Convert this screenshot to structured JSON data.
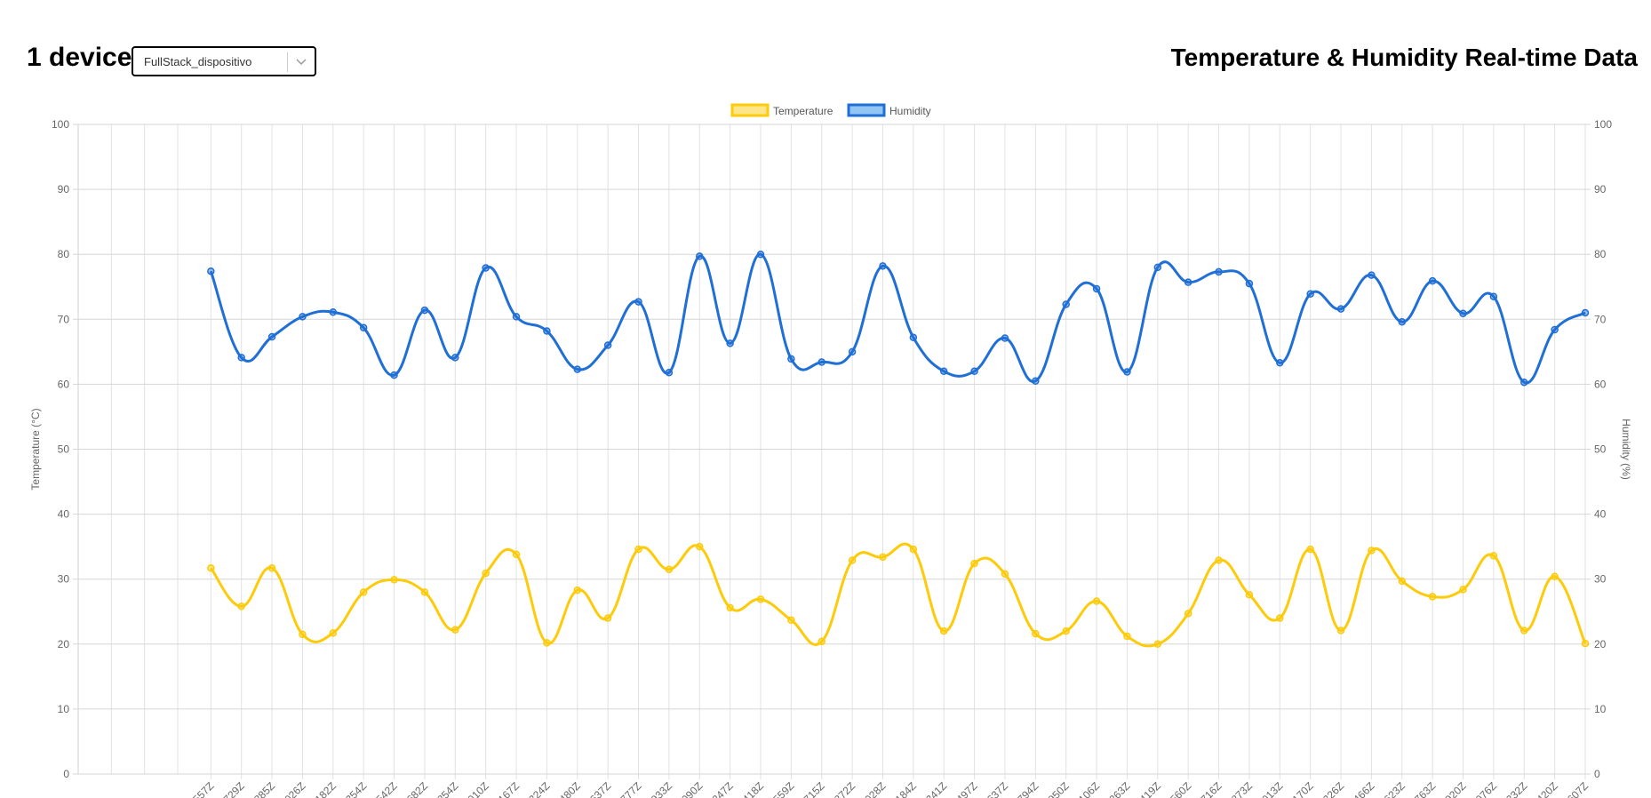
{
  "header": {
    "device_count_label": "1 device",
    "device_select_value": "FullStack_dispositivo",
    "title": "Temperature & Humidity Real-time Data"
  },
  "chart_data": {
    "type": "line",
    "title": "",
    "categories": [
      "557Z",
      "729Z",
      "885Z",
      "026Z",
      "182Z",
      "354Z",
      "542Z",
      "682Z",
      "854Z",
      "010Z",
      "167Z",
      "324Z",
      "480Z",
      "637Z",
      "777Z",
      "933Z",
      "090Z",
      "247Z",
      "418Z",
      "559Z",
      "715Z",
      "872Z",
      "028Z",
      "184Z",
      "341Z",
      "497Z",
      "637Z",
      "794Z",
      "950Z",
      "106Z",
      "263Z",
      "419Z",
      "560Z",
      "716Z",
      "873Z",
      "013Z",
      "170Z",
      "326Z",
      "466Z",
      "623Z",
      "763Z",
      "920Z",
      "076Z",
      "232Z",
      "420Z",
      "607Z"
    ],
    "series": [
      {
        "name": "Temperature",
        "axis": "left",
        "color": "#fdcb0a",
        "values": [
          31.7,
          25.8,
          31.7,
          21.5,
          21.7,
          28.0,
          29.9,
          28.0,
          22.2,
          30.9,
          33.8,
          20.2,
          28.3,
          24.0,
          34.6,
          31.5,
          35.0,
          25.6,
          26.9,
          23.7,
          20.4,
          32.9,
          33.4,
          34.6,
          22.0,
          32.4,
          30.8,
          21.6,
          22.0,
          26.6,
          21.2,
          20.0,
          24.7,
          32.9,
          27.6,
          24.0,
          34.6,
          22.1,
          34.4,
          29.7,
          27.3,
          28.4,
          33.6,
          22.1,
          30.4,
          20.1
        ]
      },
      {
        "name": "Humidity",
        "axis": "right",
        "color": "#1f6fd6",
        "values": [
          77.4,
          64.1,
          67.3,
          70.4,
          71.1,
          68.7,
          61.4,
          71.4,
          64.1,
          77.9,
          70.4,
          68.2,
          62.3,
          66.0,
          72.7,
          61.8,
          79.7,
          66.3,
          80.0,
          63.9,
          63.4,
          65.0,
          78.2,
          67.2,
          62.0,
          62.0,
          67.1,
          60.5,
          72.3,
          74.7,
          61.9,
          78.0,
          75.7,
          77.3,
          75.5,
          63.3,
          73.9,
          71.6,
          76.8,
          69.6,
          75.9,
          70.9,
          73.5,
          60.3,
          68.4,
          71.0
        ]
      }
    ],
    "y_left": {
      "label": "Temperature (°C)",
      "ylim": [
        0,
        100
      ],
      "ticks": [
        "0",
        "10",
        "20",
        "30",
        "40",
        "50",
        "60",
        "70",
        "80",
        "90",
        "100"
      ]
    },
    "y_right": {
      "label": "Humidity (%)",
      "ylim": [
        0,
        100
      ],
      "ticks": [
        "0",
        "10",
        "20",
        "30",
        "40",
        "50",
        "60",
        "70",
        "80",
        "90",
        "100"
      ]
    },
    "grid": true,
    "legend_position": "top-center",
    "smooth": true
  }
}
